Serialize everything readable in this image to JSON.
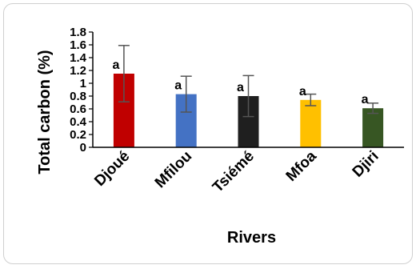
{
  "chart_data": {
    "type": "bar",
    "categories": [
      "Djoué",
      "Mfilou",
      "Tsiémé",
      "Mfoa",
      "Djiri"
    ],
    "values": [
      1.15,
      0.83,
      0.8,
      0.74,
      0.61
    ],
    "error": [
      0.44,
      0.28,
      0.32,
      0.09,
      0.08
    ],
    "significance": [
      "a",
      "a",
      "a",
      "a",
      "a"
    ],
    "colors": [
      "#c00000",
      "#4472c4",
      "#1f1f1f",
      "#ffc000",
      "#375623"
    ],
    "xlabel": "Rivers",
    "ylabel": "Total carbon (%)",
    "ylim": [
      0,
      1.8
    ],
    "yticks": [
      "0",
      "0.2",
      "0.4",
      "0.6",
      "0.8",
      "1",
      "1.2",
      "1.4",
      "1.6",
      "1.8"
    ],
    "grid": false,
    "legend": "none"
  }
}
